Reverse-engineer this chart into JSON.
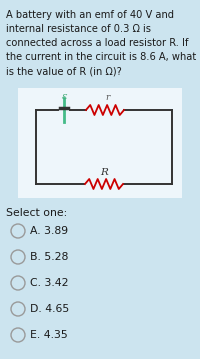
{
  "bg_color": "#cce4ef",
  "circuit_bg": "#eef6fb",
  "text_color": "#1a1a1a",
  "question_lines": [
    "A battery with an emf of 40 V and",
    "internal resistance of 0.3 Ω is",
    "connected across a load resistor R. If",
    "the current in the circuit is 8.6 A, what",
    "is the value of R (in Ω)?"
  ],
  "select_label": "Select one:",
  "options": [
    "A. 3.89",
    "B. 5.28",
    "C. 3.42",
    "D. 4.65",
    "E. 4.35"
  ],
  "resistor_color": "#cc0000",
  "wire_color": "#333333",
  "battery_long_color": "#44bb88",
  "battery_short_color": "#333333",
  "label_epsilon": "ε",
  "label_r": "r",
  "label_R": "R",
  "label_color_eps": "#44aa77",
  "label_color_r": "#555555",
  "label_color_R": "#333333"
}
